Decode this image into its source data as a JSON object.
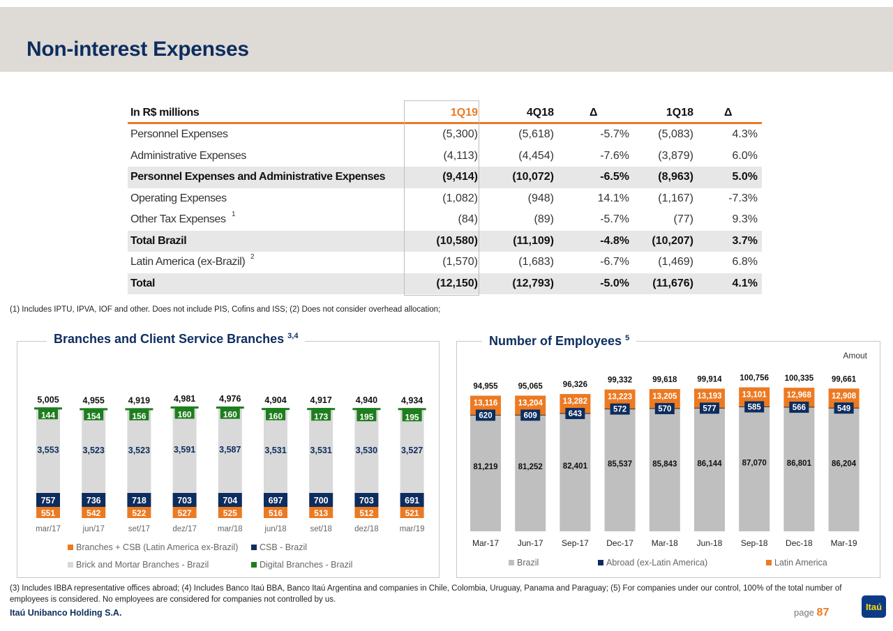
{
  "page_title": "Non-interest Expenses",
  "table": {
    "headers": [
      "In R$ millions",
      "1Q19",
      "4Q18",
      "Δ",
      "1Q18",
      "Δ"
    ],
    "rows": [
      {
        "label": "Personnel Expenses",
        "sup": "",
        "values": [
          "(5,300)",
          "(5,618)",
          "-5.7%",
          "(5,083)",
          "4.3%"
        ],
        "bold": false,
        "shade": false
      },
      {
        "label": "Administrative Expenses",
        "sup": "",
        "values": [
          "(4,113)",
          "(4,454)",
          "-7.6%",
          "(3,879)",
          "6.0%"
        ],
        "bold": false,
        "shade": false
      },
      {
        "label": "Personnel Expenses and Administrative Expenses",
        "sup": "",
        "values": [
          "(9,414)",
          "(10,072)",
          "-6.5%",
          "(8,963)",
          "5.0%"
        ],
        "bold": true,
        "shade": true
      },
      {
        "label": "Operating Expenses",
        "sup": "",
        "values": [
          "(1,082)",
          "(948)",
          "14.1%",
          "(1,167)",
          "-7.3%"
        ],
        "bold": false,
        "shade": false
      },
      {
        "label": "Other Tax Expenses",
        "sup": "1",
        "values": [
          "(84)",
          "(89)",
          "-5.7%",
          "(77)",
          "9.3%"
        ],
        "bold": false,
        "shade": false
      },
      {
        "label": "Total Brazil",
        "sup": "",
        "values": [
          "(10,580)",
          "(11,109)",
          "-4.8%",
          "(10,207)",
          "3.7%"
        ],
        "bold": true,
        "shade": true
      },
      {
        "label": "Latin America (ex-Brazil)",
        "sup": "2",
        "values": [
          "(1,570)",
          "(1,683)",
          "-6.7%",
          "(1,469)",
          "6.8%"
        ],
        "bold": false,
        "shade": false
      },
      {
        "label": "Total",
        "sup": "",
        "values": [
          "(12,150)",
          "(12,793)",
          "-5.0%",
          "(11,676)",
          "4.1%"
        ],
        "bold": true,
        "shade": true
      }
    ]
  },
  "note_top": "(1) Includes IPTU, IPVA, IOF and other. Does not include PIS, Cofins and ISS; (2) Does not consider overhead allocation;",
  "colors": {
    "navy": "#0d2d5e",
    "orange": "#ec7a22",
    "green": "#1e7e1e",
    "light_gray": "#d9d9d9",
    "mid_gray": "#bfbfbf"
  },
  "chart_data": [
    {
      "type": "bar",
      "stacked": true,
      "title": "Branches and Client Service Branches",
      "title_sup": "3,4",
      "categories": [
        "mar/17",
        "jun/17",
        "set/17",
        "dez/17",
        "mar/18",
        "jun/18",
        "set/18",
        "dez/18",
        "mar/19"
      ],
      "totals": [
        "5,005",
        "4,955",
        "4,919",
        "4,981",
        "4,976",
        "4,904",
        "4,917",
        "4,940",
        "4,934"
      ],
      "series": [
        {
          "name": "Branches + CSB (Latin America ex-Brazil)",
          "color": "#ec7a22",
          "values": [
            551,
            542,
            522,
            527,
            525,
            516,
            513,
            512,
            521
          ]
        },
        {
          "name": "CSB - Brazil",
          "color": "#0d2d5e",
          "values": [
            757,
            736,
            718,
            703,
            704,
            697,
            700,
            703,
            691
          ]
        },
        {
          "name": "Brick and Mortar Branches - Brazil",
          "color": "#d9d9d9",
          "values": [
            3553,
            3523,
            3523,
            3591,
            3587,
            3531,
            3531,
            3530,
            3527
          ]
        },
        {
          "name": "Digital Branches - Brazil",
          "color": "#1e7e1e",
          "values": [
            144,
            154,
            156,
            160,
            160,
            160,
            173,
            195,
            195
          ]
        }
      ],
      "legend_order": [
        0,
        1,
        2,
        3
      ],
      "legend": "bottom"
    },
    {
      "type": "bar",
      "stacked": true,
      "title": "Number of Employees",
      "title_sup": "5",
      "unit_label": "Amout",
      "categories": [
        "Mar-17",
        "Jun-17",
        "Sep-17",
        "Dec-17",
        "Mar-18",
        "Jun-18",
        "Sep-18",
        "Dec-18",
        "Mar-19"
      ],
      "totals": [
        "94,955",
        "95,065",
        "96,326",
        "99,332",
        "99,618",
        "99,914",
        "100,756",
        "100,335",
        "99,661"
      ],
      "series": [
        {
          "name": "Brazil",
          "color": "#bfbfbf",
          "values": [
            81219,
            81252,
            82401,
            85537,
            85843,
            86144,
            87070,
            86801,
            86204
          ]
        },
        {
          "name": "Abroad (ex-Latin America)",
          "color": "#0d2d5e",
          "values": [
            620,
            609,
            643,
            572,
            570,
            577,
            585,
            566,
            549
          ]
        },
        {
          "name": "Latin America",
          "color": "#ec7a22",
          "values": [
            13116,
            13204,
            13282,
            13223,
            13205,
            13193,
            13101,
            12968,
            12908
          ]
        }
      ],
      "legend": "bottom"
    }
  ],
  "note_bottom": "(3) Includes IBBA representative offices abroad; (4) Includes Banco Itaú BBA, Banco Itaú Argentina and companies in Chile, Colombia, Uruguay, Panama and Paraguay; (5) For companies under our control, 100% of the total number of employees is considered. No employees are considered for companies not controlled by us.",
  "footer": {
    "company": "Itaú Unibanco Holding S.A.",
    "page_label": "page",
    "page_number": "87",
    "logo_text": "Itaú"
  }
}
